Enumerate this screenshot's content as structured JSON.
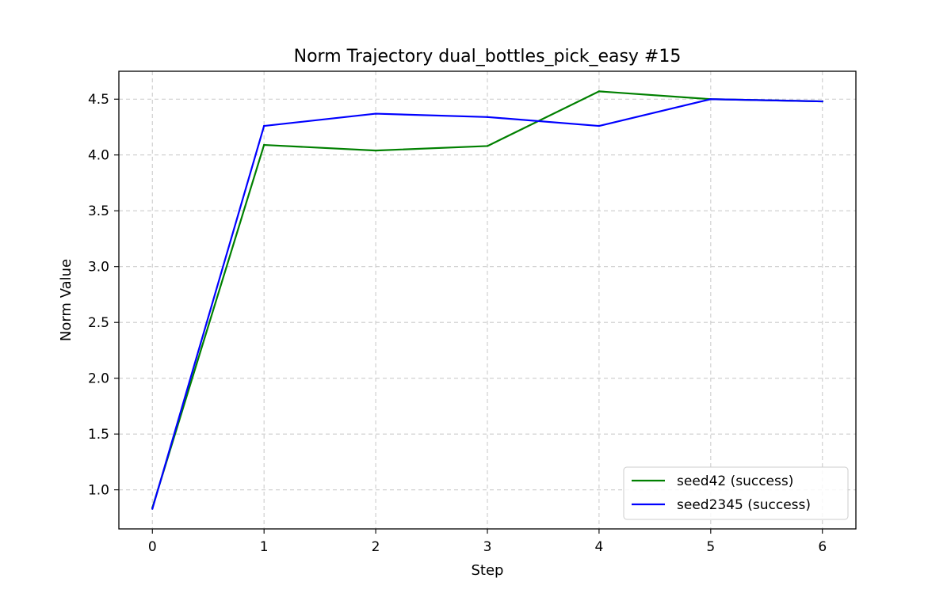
{
  "chart_data": {
    "type": "line",
    "title": "Norm Trajectory dual_bottles_pick_easy #15",
    "xlabel": "Step",
    "ylabel": "Norm Value",
    "x": [
      0,
      1,
      2,
      3,
      4,
      5,
      6
    ],
    "xlim": [
      -0.3,
      6.3
    ],
    "ylim": [
      0.65,
      4.75
    ],
    "xticks": [
      "0",
      "1",
      "2",
      "3",
      "4",
      "5",
      "6"
    ],
    "yticks": [
      "1.0",
      "1.5",
      "2.0",
      "2.5",
      "3.0",
      "3.5",
      "4.0",
      "4.5"
    ],
    "grid": true,
    "legend_position": "lower-right",
    "series": [
      {
        "name": "seed42 (success)",
        "color": "#008000",
        "values": [
          0.84,
          4.09,
          4.04,
          4.08,
          4.57,
          4.5,
          4.48
        ]
      },
      {
        "name": "seed2345 (success)",
        "color": "#0000ff",
        "values": [
          0.83,
          4.26,
          4.37,
          4.34,
          4.26,
          4.5,
          4.48
        ]
      }
    ]
  }
}
